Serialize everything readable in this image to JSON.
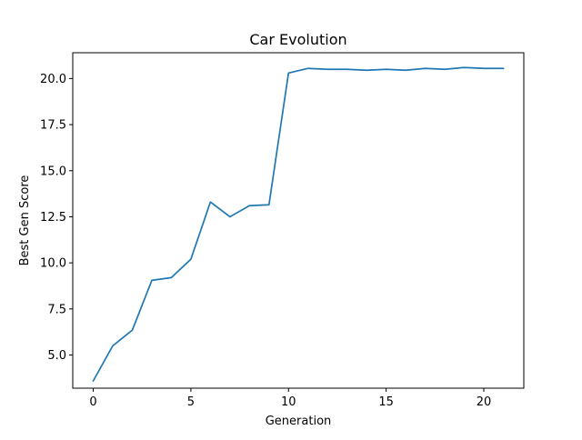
{
  "chart_data": {
    "type": "line",
    "title": "Car Evolution",
    "xlabel": "Generation",
    "ylabel": "Best Gen Score",
    "xlim": [
      -1.05,
      22.05
    ],
    "ylim": [
      3.2,
      21.4
    ],
    "xticks": [
      0,
      5,
      10,
      15,
      20
    ],
    "xtick_labels": [
      "0",
      "5",
      "10",
      "15",
      "20"
    ],
    "yticks": [
      5.0,
      7.5,
      10.0,
      12.5,
      15.0,
      17.5,
      20.0
    ],
    "ytick_labels": [
      "5.0",
      "7.5",
      "10.0",
      "12.5",
      "15.0",
      "17.5",
      "20.0"
    ],
    "grid": false,
    "legend": false,
    "series": [
      {
        "color": "#1f77b4",
        "x": [
          0,
          1,
          2,
          3,
          4,
          5,
          6,
          7,
          8,
          9,
          10,
          11,
          12,
          13,
          14,
          15,
          16,
          17,
          18,
          19,
          20,
          21
        ],
        "y": [
          3.6,
          5.5,
          6.35,
          9.05,
          9.2,
          10.2,
          13.3,
          12.5,
          13.1,
          13.15,
          20.3,
          20.55,
          20.5,
          20.5,
          20.45,
          20.5,
          20.45,
          20.55,
          20.5,
          20.6,
          20.55,
          20.55
        ]
      }
    ]
  }
}
